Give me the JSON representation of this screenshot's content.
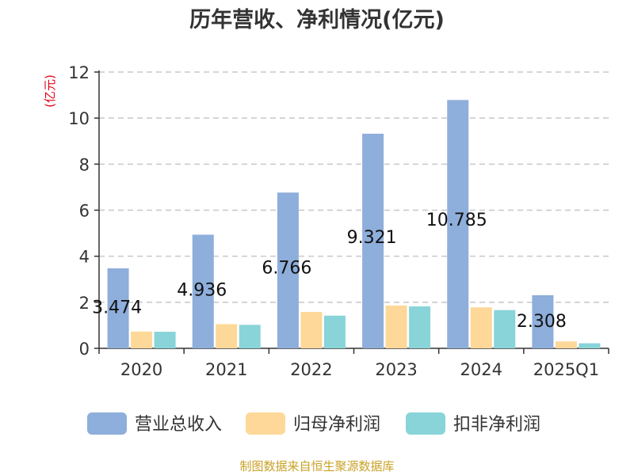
{
  "chart_data": {
    "type": "bar",
    "title": "历年营收、净利情况(亿元)",
    "unit_label": "(亿元)",
    "categories": [
      "2020",
      "2021",
      "2022",
      "2023",
      "2024",
      "2025Q1"
    ],
    "series": [
      {
        "name": "营业总收入",
        "color": "#8eaedb",
        "values": [
          3.474,
          4.936,
          6.766,
          9.321,
          10.785,
          2.308
        ]
      },
      {
        "name": "归母净利润",
        "color": "#fdd898",
        "values": [
          0.73,
          1.05,
          1.58,
          1.86,
          1.78,
          0.3
        ]
      },
      {
        "name": "扣非净利润",
        "color": "#88d4d8",
        "values": [
          0.72,
          1.02,
          1.42,
          1.82,
          1.66,
          0.22
        ]
      }
    ],
    "data_labels": [
      "3.474",
      "4.936",
      "6.766",
      "9.321",
      "10.785",
      "2.308"
    ],
    "y_ticks": [
      "0",
      "2",
      "4",
      "6",
      "8",
      "10",
      "12"
    ],
    "ylim": [
      0,
      12
    ],
    "grid": true,
    "legend_position": "bottom"
  },
  "source": "制图数据来自恒生聚源数据库"
}
